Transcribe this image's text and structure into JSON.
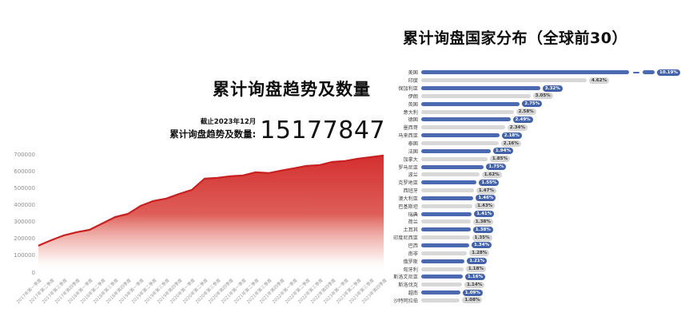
{
  "chart_data": [
    {
      "type": "area",
      "title": "累计询盘趋势及数量",
      "annotation_asof": "截止2023年12月",
      "annotation_label": "累计询盘趋势及数量:",
      "annotation_value": "15177847",
      "xlabel": "",
      "ylabel": "",
      "ylim": [
        0,
        700000
      ],
      "y_ticks": [
        0,
        100000,
        200000,
        300000,
        400000,
        500000,
        600000,
        700000
      ],
      "grid": false,
      "legend": "none",
      "line_color": "#c9201f",
      "area_color": "#d32f2f",
      "categories": [
        "2017年第一季度",
        "2017年第二季度",
        "2017年第三季度",
        "2017年第四季度",
        "2018年第一季度",
        "2018年第二季度",
        "2018年第三季度",
        "2018年第四季度",
        "2019年第一季度",
        "2019年第二季度",
        "2019年第三季度",
        "2019年第四季度",
        "2020年第一季度",
        "2020年第二季度",
        "2020年第三季度",
        "2020年第四季度",
        "2021年第一季度",
        "2021年第二季度",
        "2021年第三季度",
        "2021年第四季度",
        "2022年第一季度",
        "2022年第二季度",
        "2022年第三季度",
        "2022年第四季度",
        "2023年第一季度",
        "2023年第二季度",
        "2023年第三季度",
        "2023年第四季度"
      ],
      "values": [
        162000,
        195000,
        224000,
        243000,
        257000,
        295000,
        333000,
        352000,
        400000,
        429000,
        443000,
        471000,
        495000,
        562000,
        567000,
        576000,
        581000,
        600000,
        595000,
        610000,
        624000,
        638000,
        643000,
        662000,
        667000,
        681000,
        690000,
        700000
      ]
    },
    {
      "type": "bar",
      "orientation": "horizontal",
      "title": "累计询盘国家分布（全球前30）",
      "unit": "%",
      "legend": "none",
      "grid": false,
      "bar_color_odd": "#4a69b1",
      "bar_color_even": "#d8d8d8",
      "badge_blue_bg": "#4262ab",
      "badge_blue_text": "#ffffff",
      "badge_gray_bg": "#d6d6d6",
      "badge_gray_text": "#3d3d3d",
      "overflow_break_index": 0,
      "categories": [
        "美国",
        "印度",
        "保加利亚",
        "伊朗",
        "英国",
        "意大利",
        "德国",
        "墨西哥",
        "马来西亚",
        "泰国",
        "法国",
        "加拿大",
        "罗马尼亚",
        "波兰",
        "克罗地亚",
        "西班牙",
        "澳大利亚",
        "巴基斯坦",
        "瑞典",
        "荷兰",
        "土耳其",
        "印度尼西亚",
        "巴西",
        "南非",
        "俄罗斯",
        "匈牙利",
        "斯洛文尼亚",
        "斯洛伐克",
        "越南",
        "沙特阿拉伯"
      ],
      "values": [
        10.19,
        4.62,
        3.32,
        3.05,
        2.75,
        2.58,
        2.49,
        2.34,
        2.18,
        2.16,
        1.94,
        1.85,
        1.75,
        1.62,
        1.55,
        1.47,
        1.46,
        1.43,
        1.41,
        1.38,
        1.38,
        1.35,
        1.34,
        1.28,
        1.21,
        1.18,
        1.16,
        1.14,
        1.09,
        1.08
      ],
      "labels": [
        "10.19%",
        "4.62%",
        "3.32%",
        "3.05%",
        "2.75%",
        "2.58%",
        "2.49%",
        "2.34%",
        "2.18%",
        "2.16%",
        "1.94%",
        "1.85%",
        "1.75%",
        "1.62%",
        "1.55%",
        "1.47%",
        "1.46%",
        "1.43%",
        "1.41%",
        "1.38%",
        "1.38%",
        "1.35%",
        "1.34%",
        "1.28%",
        "1.21%",
        "1.18%",
        "1.16%",
        "1.14%",
        "1.09%",
        "1.08%"
      ]
    }
  ]
}
